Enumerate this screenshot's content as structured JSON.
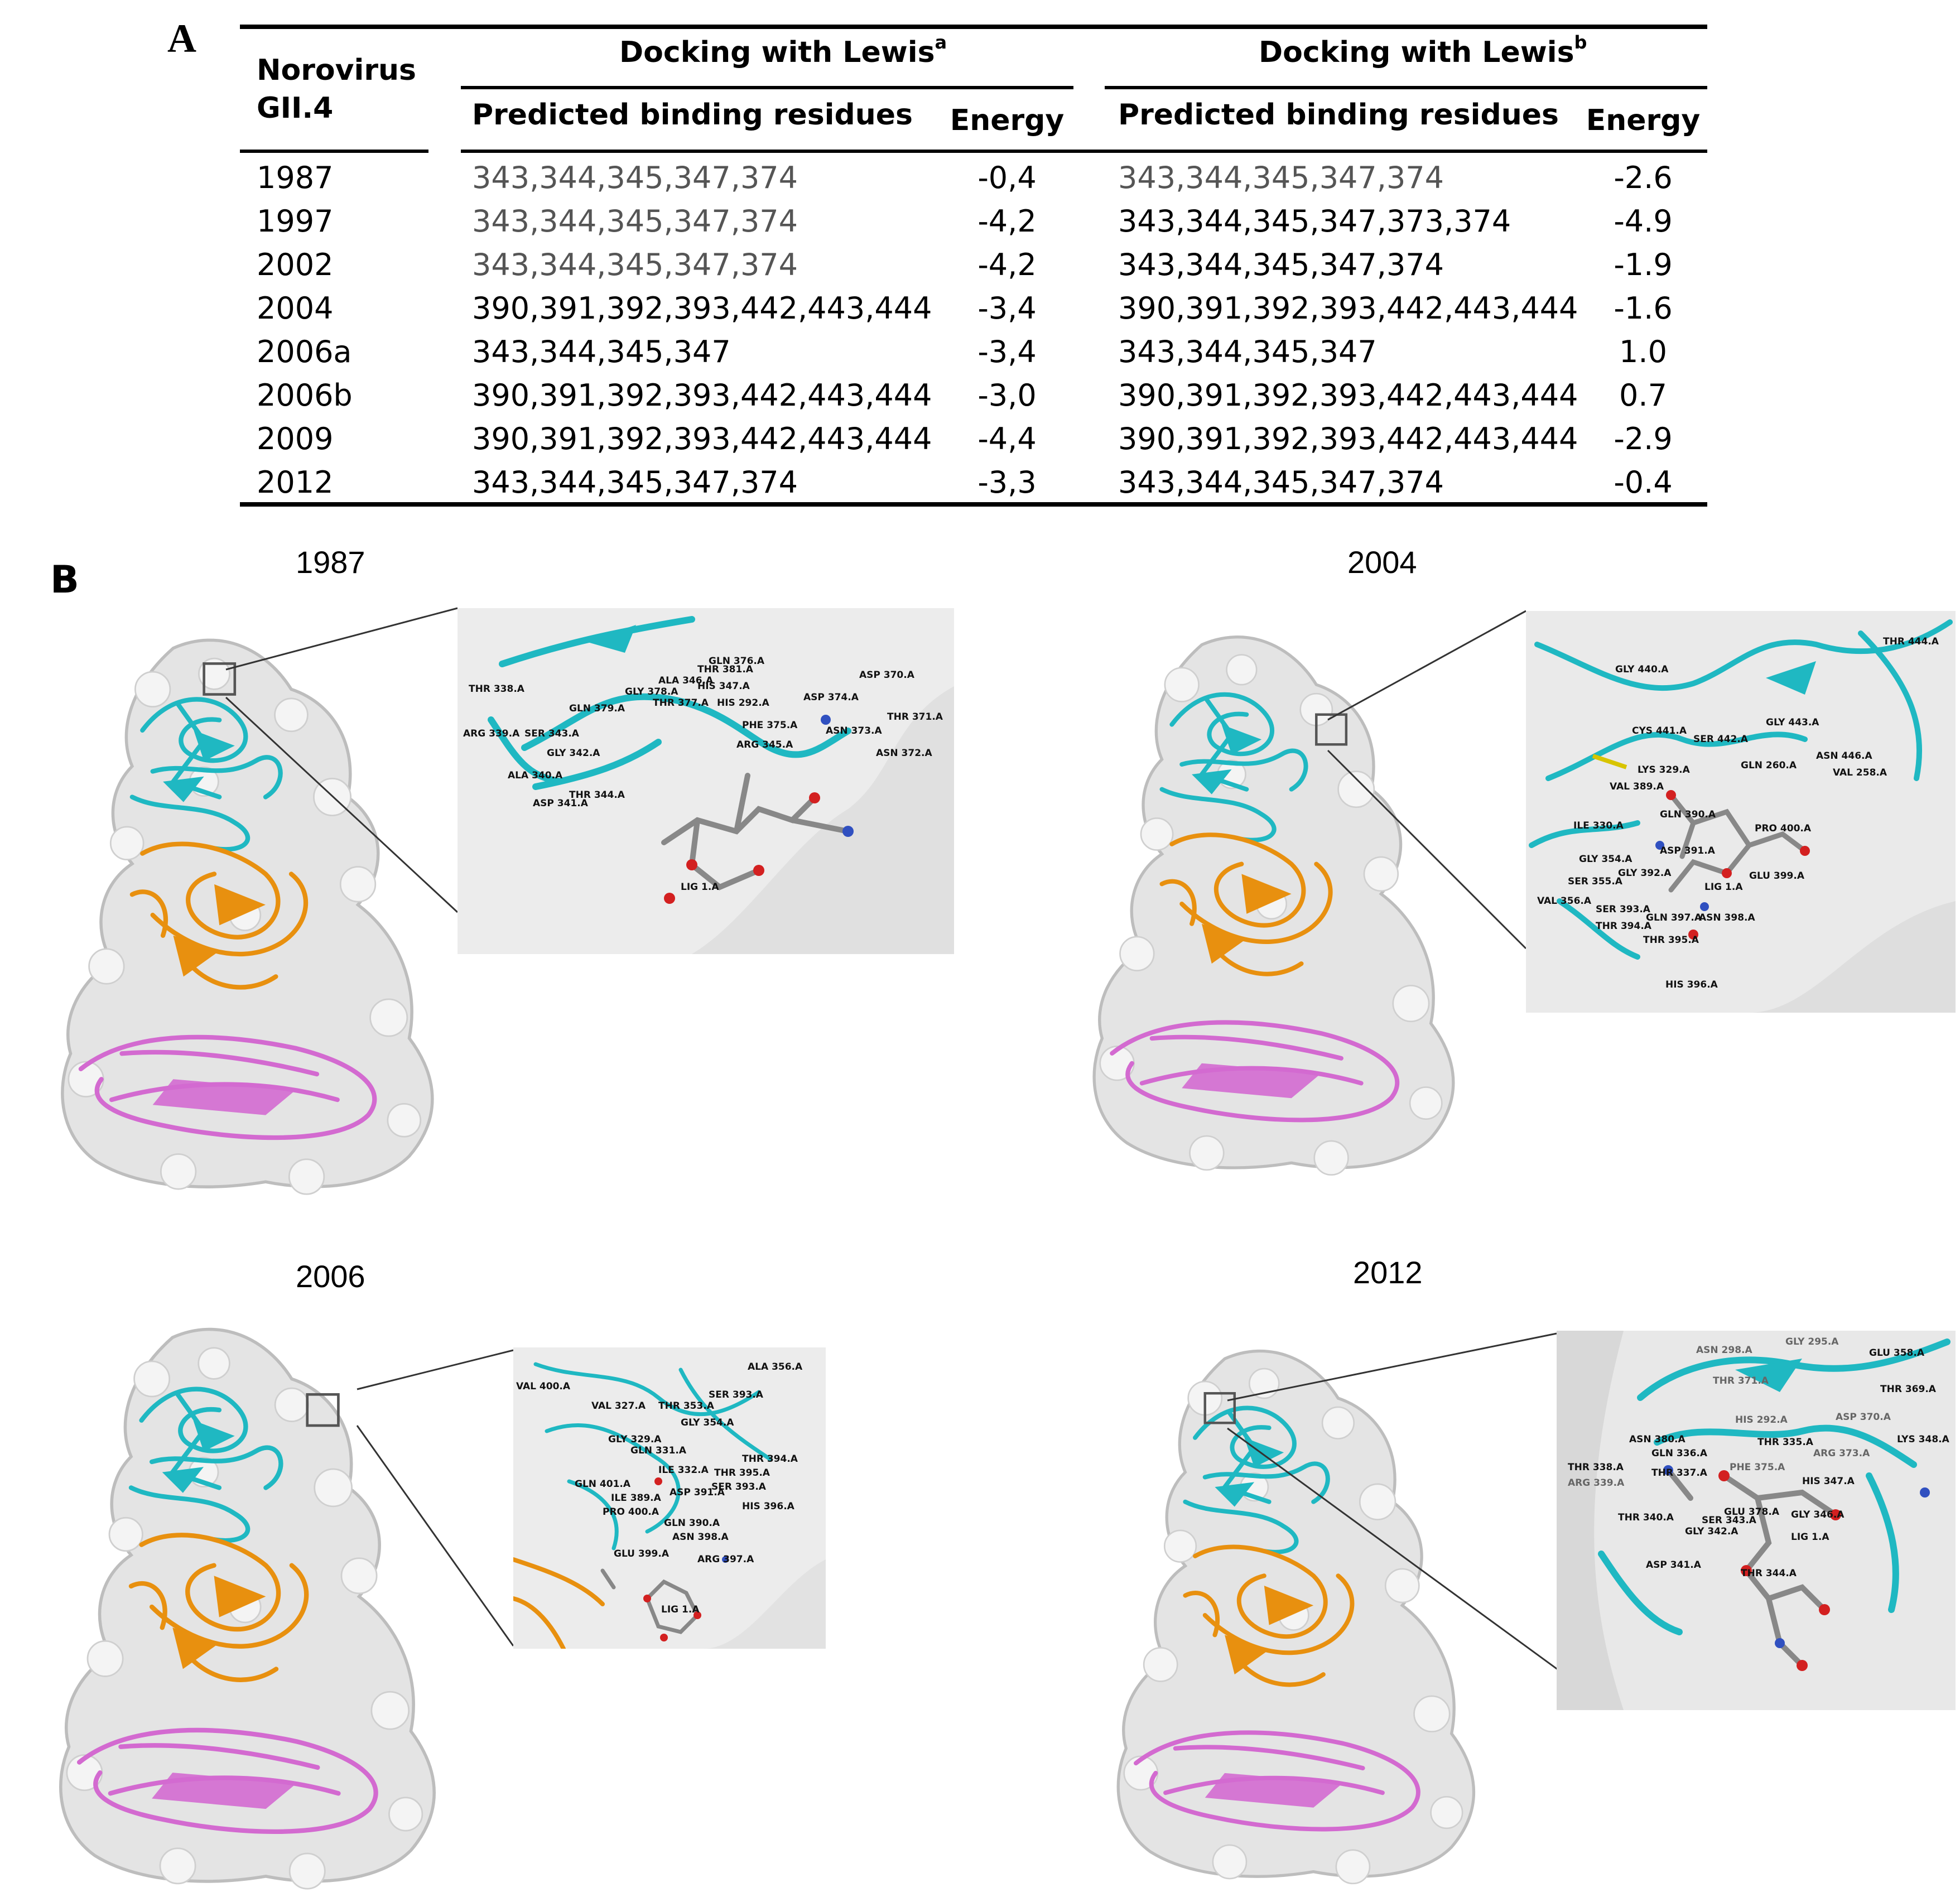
{
  "panel_labels": {
    "a": "A",
    "b": "B"
  },
  "table": {
    "header": {
      "virus_line1": "Norovirus",
      "virus_line2": "GII.4",
      "group_a_title": "Docking with Lewis",
      "group_a_sup": "a",
      "group_b_title": "Docking with Lewis",
      "group_b_sup": "b",
      "residues_label": "Predicted binding residues",
      "energy_label": "Energy"
    },
    "rows": [
      {
        "year": "1987",
        "res_a": "343,344,345,347,374",
        "energy_a": "-0,4",
        "res_b": "343,344,345,347,374",
        "energy_b": "-2.6"
      },
      {
        "year": "1997",
        "res_a": "343,344,345,347,374",
        "energy_a": "-4,2",
        "res_b": "343,344,345,347,373,374",
        "energy_b": "-4.9"
      },
      {
        "year": "2002",
        "res_a": "343,344,345,347,374",
        "energy_a": "-4,2",
        "res_b": "343,344,345,347,374",
        "energy_b": "-1.9"
      },
      {
        "year": "2004",
        "res_a": "390,391,392,393,442,443,444",
        "energy_a": "-3,4",
        "res_b": "390,391,392,393,442,443,444",
        "energy_b": "-1.6"
      },
      {
        "year": "2006a",
        "res_a": "343,344,345,347",
        "energy_a": "-3,4",
        "res_b": "343,344,345,347",
        "energy_b": "1.0"
      },
      {
        "year": "2006b",
        "res_a": "390,391,392,393,442,443,444",
        "energy_a": "-3,0",
        "res_b": "390,391,392,393,442,443,444",
        "energy_b": "0.7"
      },
      {
        "year": "2009",
        "res_a": "390,391,392,393,442,443,444",
        "energy_a": "-4,4",
        "res_b": "390,391,392,393,442,443,444",
        "energy_b": "-2.9"
      },
      {
        "year": "2012",
        "res_a": "343,344,345,347,374",
        "energy_a": "-3,3",
        "res_b": "343,344,345,347,374",
        "energy_b": "-0.4"
      }
    ]
  },
  "panels": [
    {
      "year": "1987",
      "labels": [
        "THR 338.A",
        "ARG 339.A",
        "SER 343.A",
        "GLY 342.A",
        "ALA 340.A",
        "ASP 341.A",
        "THR 344.A",
        "GLN 379.A",
        "GLY 378.A",
        "ALA 346.A",
        "THR 377.A",
        "THR 381.A",
        "HIS 347.A",
        "HIS 292.A",
        "GLN 376.A",
        "ASP 374.A",
        "ASP 370.A",
        "THR 371.A",
        "ASN 373.A",
        "ASN 372.A",
        "PHE 375.A",
        "ARG 345.A",
        "LIG 1.A"
      ]
    },
    {
      "year": "2004",
      "labels": [
        "THR 444.A",
        "GLY 440.A",
        "CYS 441.A",
        "SER 442.A",
        "GLY 443.A",
        "ASN 446.A",
        "VAL 258.A",
        "LYS 329.A",
        "GLN 260.A",
        "VAL 389.A",
        "ILE 330.A",
        "GLN 390.A",
        "PRO 400.A",
        "ASP 391.A",
        "GLY 354.A",
        "SER 355.A",
        "GLY 392.A",
        "GLU 399.A",
        "LIG 1.A",
        "VAL 356.A",
        "SER 393.A",
        "THR 394.A",
        "GLN 397.A",
        "ASN 398.A",
        "THR 395.A",
        "HIS 396.A"
      ]
    },
    {
      "year": "2006",
      "labels": [
        "ALA 356.A",
        "VAL 400.A",
        "SER 393.A",
        "VAL 327.A",
        "THR 353.A",
        "GLY 354.A",
        "GLY 329.A",
        "GLN 331.A",
        "ILE 332.A",
        "THR 394.A",
        "THR 395.A",
        "SER 393.A",
        "GLN 401.A",
        "ILE 389.A",
        "ASP 391.A",
        "PRO 400.A",
        "HIS 396.A",
        "GLN 390.A",
        "ASN 398.A",
        "GLU 399.A",
        "ARG 397.A",
        "LIG 1.A"
      ]
    },
    {
      "year": "2012",
      "labels": [
        "ASN 298.A",
        "GLY 295.A",
        "GLU 358.A",
        "THR 371.A",
        "THR 369.A",
        "ASN 380.A",
        "HIS 292.A",
        "ASP 370.A",
        "LYS 348.A",
        "THR 338.A",
        "GLN 336.A",
        "THR 335.A",
        "ARG 373.A",
        "ARG 339.A",
        "THR 337.A",
        "PHE 375.A",
        "HIS 347.A",
        "THR 340.A",
        "GLU 378.A",
        "GLY 346.A",
        "GLY 342.A",
        "SER 343.A",
        "LIG 1.A",
        "ASP 341.A",
        "THR 344.A"
      ]
    }
  ],
  "colors": {
    "cyan": "#1fb8c2",
    "orange": "#e8900f",
    "pink": "#d36ad0",
    "surface": "#e4e4e4"
  }
}
